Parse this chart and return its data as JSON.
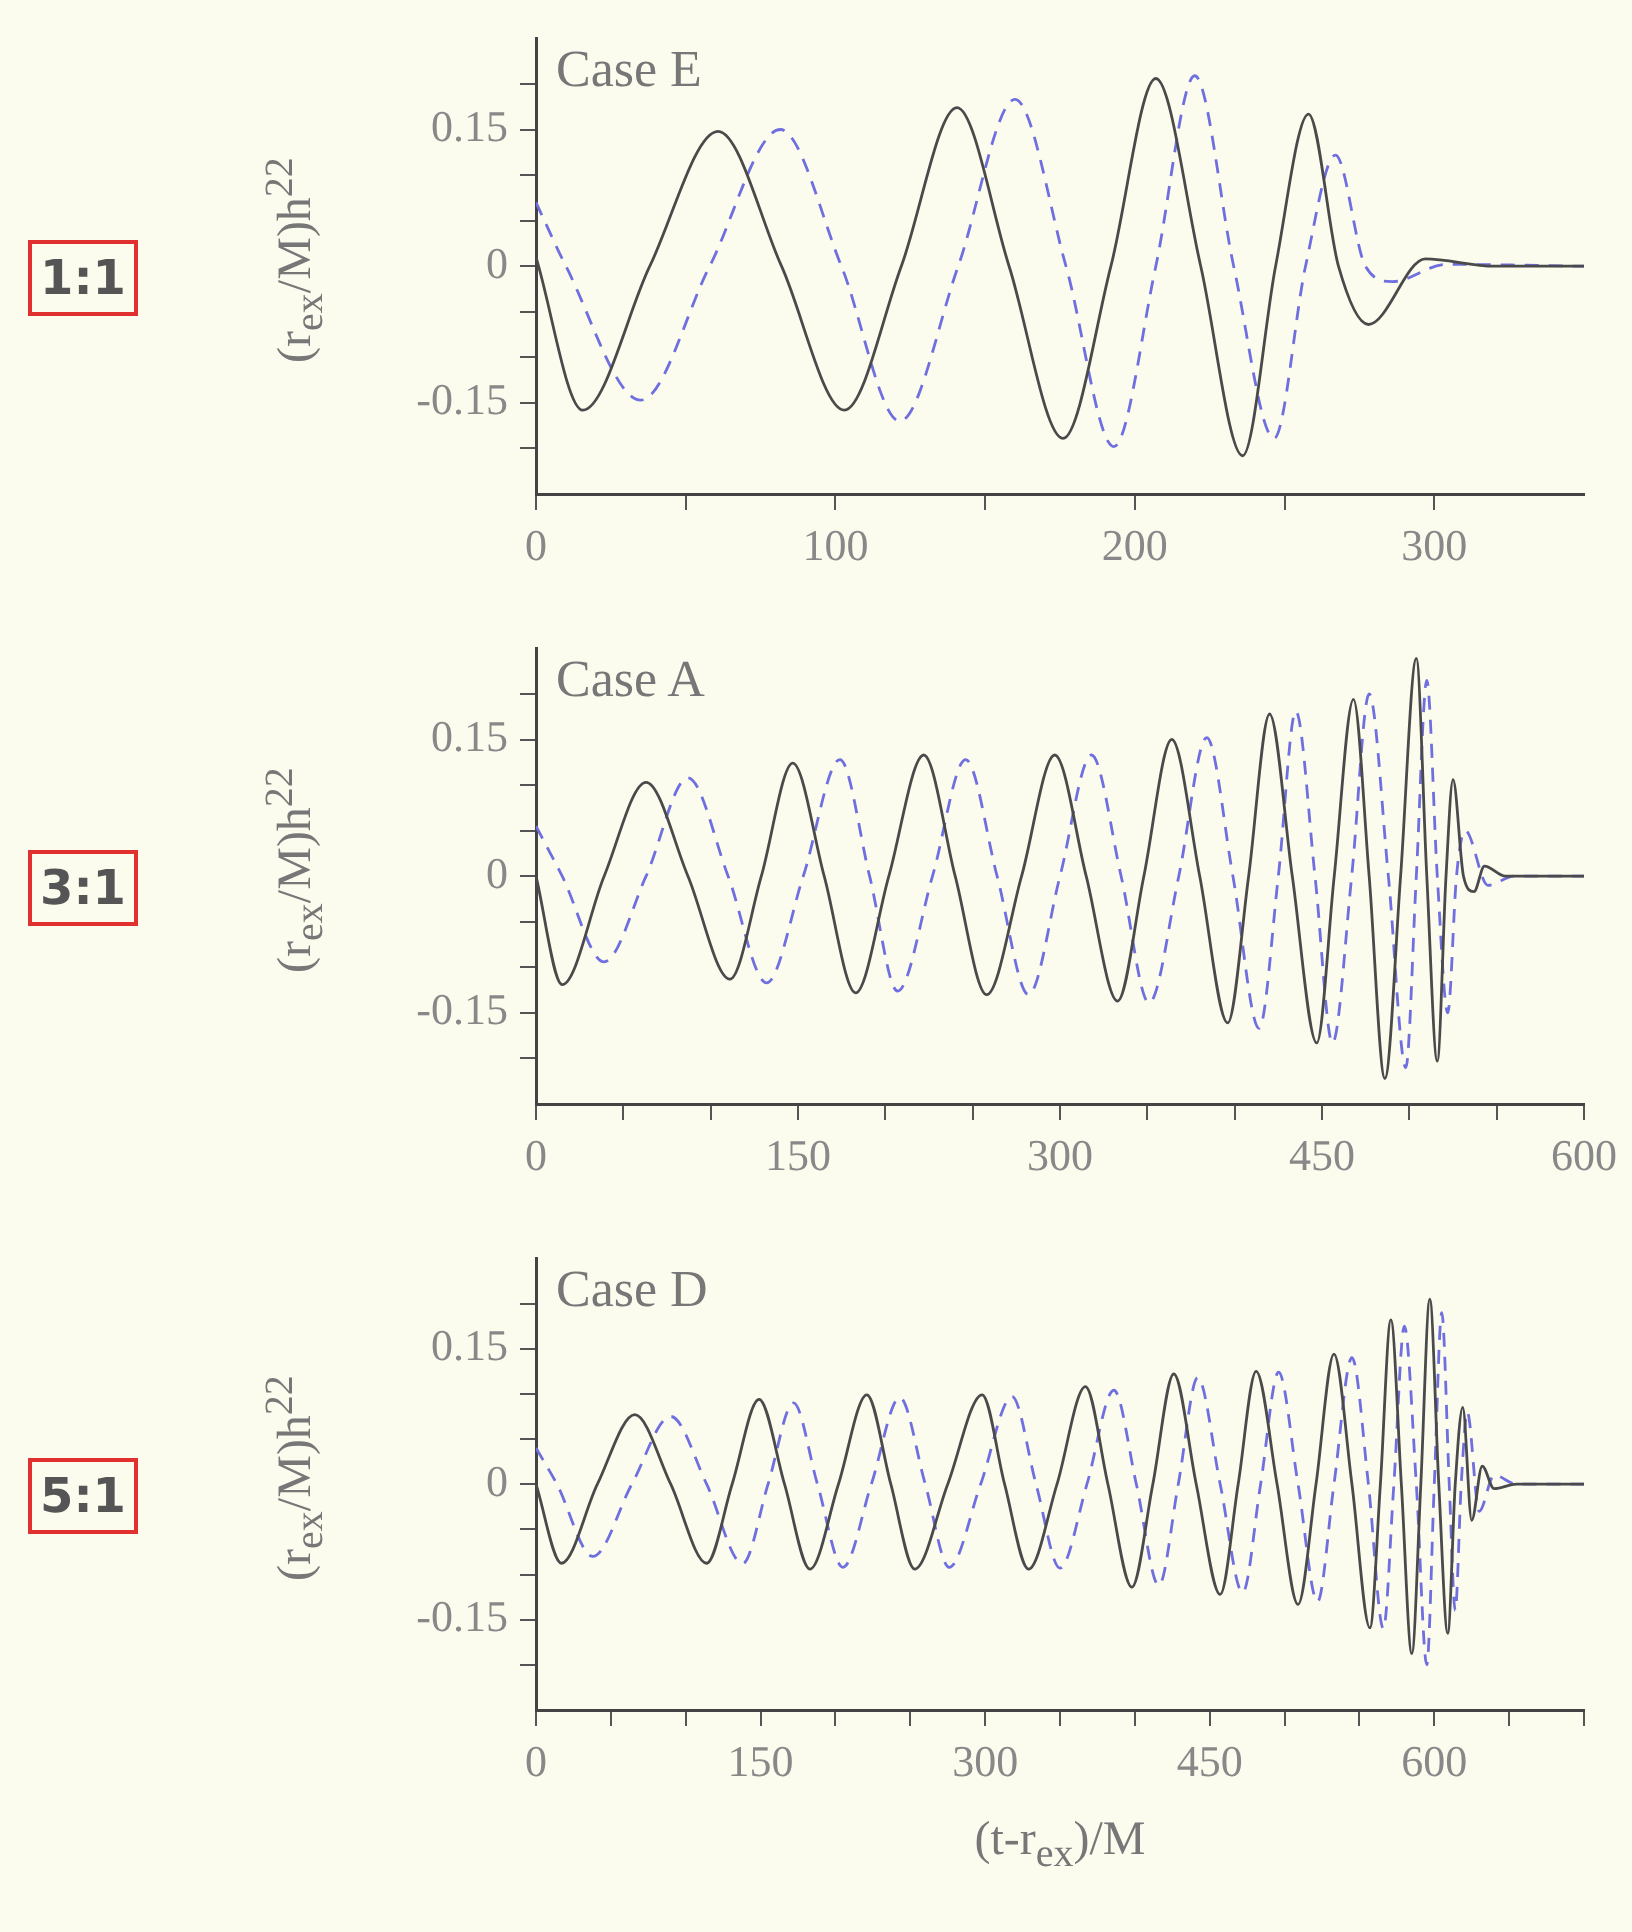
{
  "chart_data": [
    {
      "type": "line",
      "title": "Case E",
      "ylabel": "(r$_{ex}$/M)h$^{22}$",
      "annotations": [
        "1:1"
      ],
      "xlim": [
        0,
        350
      ],
      "xticks": [
        0,
        {
          "value": 50,
          "label": null
        },
        100,
        {
          "value": 150,
          "label": null
        },
        200,
        {
          "value": 250,
          "label": null
        },
        300
      ],
      "ylim": [
        -0.25,
        0.25
      ],
      "yticks": [
        {
          "value": -0.2,
          "label": null
        },
        -0.15,
        {
          "value": -0.1,
          "label": null
        },
        {
          "value": -0.05,
          "label": null
        },
        0,
        {
          "value": 0.05,
          "label": null
        },
        {
          "value": 0.1,
          "label": null
        },
        0.15,
        {
          "value": 0.2,
          "label": null
        }
      ],
      "grid": false,
      "legend": false,
      "series": [
        {
          "color": "#4a4a4a",
          "line_style": "solid",
          "x": [
            0,
            15.6,
            38,
            60.8,
            82,
            103,
            122,
            140.6,
            158,
            176,
            192,
            207,
            222,
            236,
            247,
            258,
            268,
            278,
            297,
            320,
            350
          ],
          "values": [
            0.01,
            -0.158,
            0,
            0.148,
            0,
            -0.158,
            0,
            0.174,
            0,
            -0.189,
            0,
            0.206,
            0,
            -0.208,
            0,
            0.167,
            0,
            -0.064,
            0.008,
            0,
            0
          ]
        },
        {
          "color": "#6f6fe0",
          "line_style": "dashed",
          "x": [
            0,
            10,
            35,
            58,
            81.6,
            102,
            121.5,
            141,
            160,
            177,
            193,
            207,
            220,
            233,
            246.5,
            257,
            267,
            277,
            286,
            304,
            350
          ],
          "values": [
            0.07,
            0,
            -0.147,
            0,
            0.15,
            0,
            -0.17,
            0,
            0.183,
            0,
            -0.198,
            0,
            0.209,
            0,
            -0.189,
            0,
            0.122,
            0,
            -0.017,
            0.002,
            0
          ]
        }
      ]
    },
    {
      "type": "line",
      "title": "Case A",
      "ylabel": "(r$_{ex}$/M)h$^{22}$",
      "annotations": [
        "3:1"
      ],
      "xlim": [
        0,
        600
      ],
      "xticks": [
        0,
        {
          "value": 50,
          "label": null
        },
        {
          "value": 100,
          "label": null
        },
        150,
        {
          "value": 200,
          "label": null
        },
        {
          "value": 250,
          "label": null
        },
        300,
        {
          "value": 350,
          "label": null
        },
        {
          "value": 400,
          "label": null
        },
        450,
        {
          "value": 500,
          "label": null
        },
        {
          "value": 550,
          "label": null
        },
        600
      ],
      "ylim": [
        -0.25,
        0.25
      ],
      "yticks": [
        {
          "value": -0.2,
          "label": null
        },
        -0.15,
        {
          "value": -0.1,
          "label": null
        },
        {
          "value": -0.05,
          "label": null
        },
        0,
        {
          "value": 0.05,
          "label": null
        },
        {
          "value": 0.1,
          "label": null
        },
        0.15,
        {
          "value": 0.2,
          "label": null
        }
      ],
      "grid": false,
      "legend": false,
      "series": [
        {
          "color": "#4a4a4a",
          "line_style": "solid",
          "x": [
            0,
            15,
            39,
            63,
            87,
            111,
            129,
            147,
            165,
            183,
            202,
            222,
            240,
            258,
            278,
            297,
            315,
            333,
            348,
            364,
            380,
            396,
            408,
            420,
            433,
            447,
            457,
            468,
            477,
            486,
            495,
            504,
            510,
            516,
            521,
            525,
            531,
            537,
            543,
            555,
            600
          ],
          "values": [
            0,
            -0.119,
            0,
            0.103,
            0,
            -0.113,
            0,
            0.124,
            0,
            -0.128,
            0,
            0.133,
            0,
            -0.13,
            0,
            0.133,
            0,
            -0.137,
            0,
            0.15,
            0,
            -0.161,
            0,
            0.178,
            0,
            -0.183,
            0,
            0.194,
            0,
            -0.222,
            0,
            0.239,
            0,
            -0.203,
            0,
            0.106,
            0,
            -0.017,
            0.011,
            0,
            0
          ]
        },
        {
          "color": "#6f6fe0",
          "line_style": "dashed",
          "x": [
            0,
            15,
            39,
            63,
            87,
            110,
            132,
            153,
            174,
            191,
            207,
            227,
            246,
            264,
            282,
            300,
            318,
            335,
            351,
            368,
            384,
            399,
            414,
            425,
            435,
            446,
            456,
            467,
            477,
            488,
            498,
            504,
            510,
            516,
            522,
            527,
            532,
            545,
            560,
            600
          ],
          "values": [
            0.055,
            0,
            -0.094,
            0,
            0.108,
            0,
            -0.117,
            0,
            0.128,
            0,
            -0.126,
            0,
            0.128,
            0,
            -0.13,
            0,
            0.133,
            0,
            -0.139,
            0,
            0.152,
            0,
            -0.167,
            0,
            0.181,
            0,
            -0.183,
            0,
            0.2,
            0,
            -0.21,
            0,
            0.215,
            0,
            -0.15,
            0,
            0.05,
            -0.01,
            0,
            0
          ]
        }
      ]
    },
    {
      "type": "line",
      "title": "Case D",
      "ylabel": "(r$_{ex}$/M)h$^{22}$",
      "xlabel": "(t-r$_{ex}$)/M",
      "annotations": [
        "5:1"
      ],
      "xlim": [
        0,
        700
      ],
      "xticks": [
        0,
        {
          "value": 50,
          "label": null
        },
        {
          "value": 100,
          "label": null
        },
        150,
        {
          "value": 200,
          "label": null
        },
        {
          "value": 250,
          "label": null
        },
        300,
        {
          "value": 350,
          "label": null
        },
        {
          "value": 400,
          "label": null
        },
        450,
        {
          "value": 500,
          "label": null
        },
        {
          "value": 550,
          "label": null
        },
        600,
        {
          "value": 650,
          "label": null
        },
        {
          "value": 700,
          "label": null
        }
      ],
      "ylim": [
        -0.25,
        0.25
      ],
      "yticks": [
        {
          "value": -0.2,
          "label": null
        },
        -0.15,
        {
          "value": -0.1,
          "label": null
        },
        {
          "value": -0.05,
          "label": null
        },
        0,
        {
          "value": 0.05,
          "label": null
        },
        {
          "value": 0.1,
          "label": null
        },
        0.15,
        {
          "value": 0.2,
          "label": null
        }
      ],
      "grid": false,
      "legend": false,
      "series": [
        {
          "color": "#4a4a4a",
          "line_style": "solid",
          "x": [
            0,
            17,
            41,
            66,
            90,
            114,
            131,
            149,
            166,
            183,
            202,
            221,
            237,
            253,
            275,
            298,
            313,
            329,
            348,
            367,
            382,
            398,
            412,
            426,
            441,
            457,
            469,
            481,
            495,
            509,
            521,
            533,
            545,
            557,
            564,
            571,
            578,
            585,
            591,
            597,
            603,
            609,
            614,
            619,
            625,
            632,
            640,
            655,
            700
          ],
          "values": [
            0,
            -0.0875,
            0,
            0.077,
            0,
            -0.0875,
            0,
            0.094,
            0,
            -0.094,
            0,
            0.099,
            0,
            -0.094,
            0,
            0.099,
            0,
            -0.094,
            0,
            0.108,
            0,
            -0.114,
            0,
            0.122,
            0,
            -0.122,
            0,
            0.125,
            0,
            -0.133,
            0,
            0.144,
            0,
            -0.159,
            0,
            0.182,
            0,
            -0.1875,
            0,
            0.205,
            0,
            -0.165,
            0,
            0.085,
            -0.04,
            0.02,
            -0.005,
            0,
            0
          ]
        },
        {
          "color": "#6f6fe0",
          "line_style": "dashed",
          "x": [
            0,
            14,
            38,
            64,
            90,
            114,
            138,
            155,
            172,
            188,
            205,
            224,
            243,
            260,
            276,
            297,
            318,
            334,
            350,
            368,
            386,
            401,
            416,
            429,
            442,
            457,
            472,
            484,
            496,
            509,
            522,
            533,
            545,
            556,
            566,
            573,
            580,
            588,
            595,
            600,
            605,
            610,
            614,
            618,
            622,
            630,
            640,
            655,
            700
          ],
          "values": [
            0.04,
            0,
            -0.08,
            0,
            0.075,
            0,
            -0.088,
            0,
            0.09,
            0,
            -0.092,
            0,
            0.096,
            0,
            -0.092,
            0,
            0.097,
            0,
            -0.093,
            0,
            0.104,
            0,
            -0.112,
            0,
            0.118,
            0,
            -0.12,
            0,
            0.124,
            0,
            -0.13,
            0,
            0.14,
            0,
            -0.16,
            0,
            0.175,
            0,
            -0.2,
            0,
            0.19,
            0,
            -0.14,
            0,
            0.08,
            -0.03,
            0.01,
            0,
            0
          ]
        }
      ]
    }
  ]
}
